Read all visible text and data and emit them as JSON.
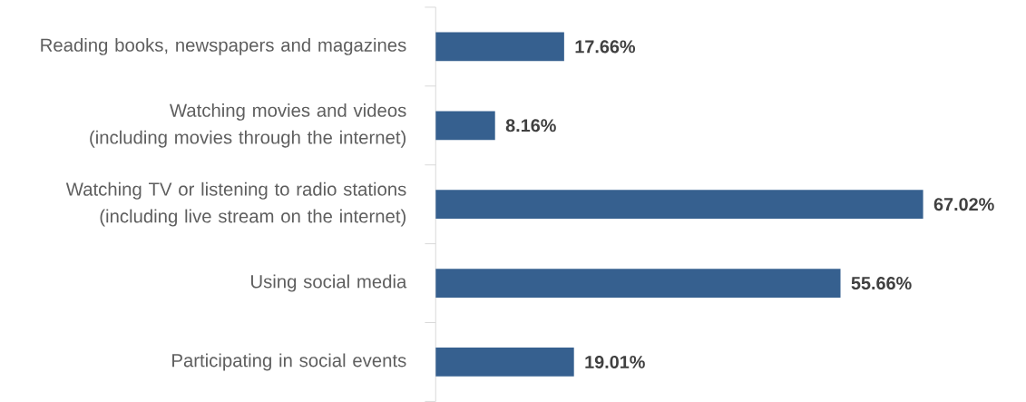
{
  "chart_data": {
    "type": "bar",
    "orientation": "horizontal",
    "categories": [
      "Reading books, newspapers and magazines",
      "Watching movies and videos (including movies through the internet)",
      "Watching TV or listening to radio stations (including live stream on the internet)",
      "Using social media",
      "Participating in social events"
    ],
    "values": [
      17.66,
      8.16,
      67.02,
      55.66,
      19.01
    ],
    "value_labels": [
      "17.66%",
      "8.16%",
      "67.02%",
      "55.66%",
      "19.01%"
    ],
    "color": "#36608f",
    "tick_labels": "y"
  }
}
